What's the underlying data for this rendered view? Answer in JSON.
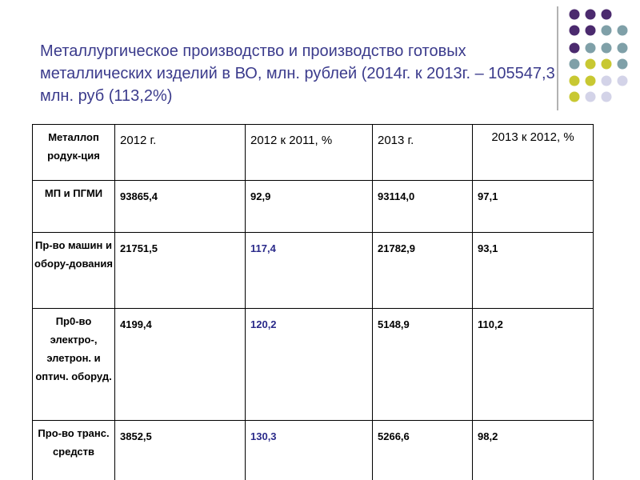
{
  "title": "Металлургическое производство и производство готовых металлических изделий в ВО, млн. рублей (2014г. к 2013г. – 105547,3 млн. руб (113,2%)",
  "table": {
    "header": [
      "Металлоп родук-ция",
      "2012 г.",
      "2012 к 2011, %",
      "2013 г.",
      "2013 к 2012, %"
    ],
    "rows": [
      [
        "МП и ПГМИ",
        "93865,4",
        "92,9",
        "93114,0",
        "97,1"
      ],
      [
        "Пр-во машин и обору-дования",
        "21751,5",
        "117,4",
        "21782,9",
        "93,1"
      ],
      [
        "Пр0-во электро-, элетрон. и оптич. оборуд.",
        "4199,4",
        "120,2",
        "5148,9",
        "110,2"
      ],
      [
        "Про-во транс. средств",
        "3852,5",
        "130,3",
        "5266,6",
        "98,2"
      ]
    ]
  }
}
